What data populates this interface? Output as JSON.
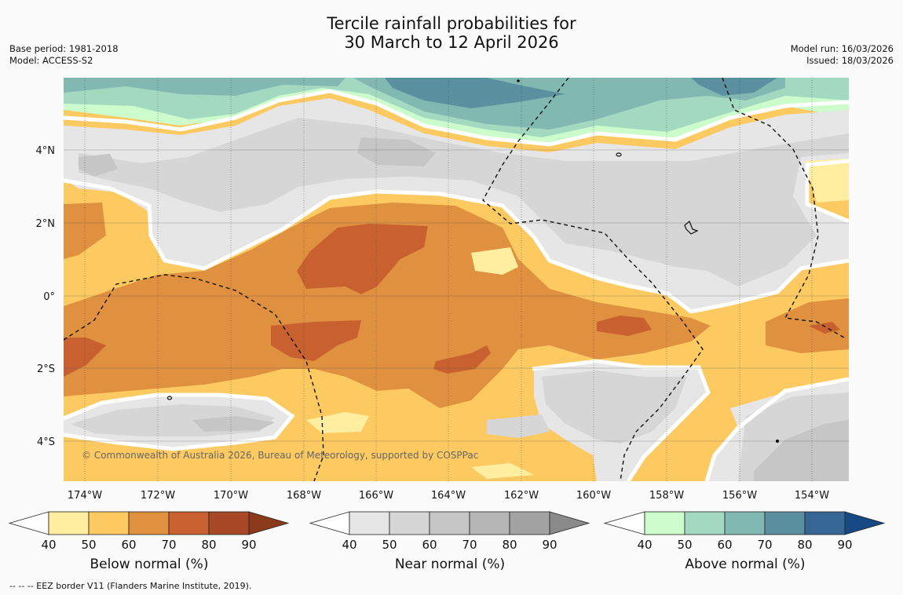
{
  "title": {
    "line1": "Tercile rainfall probabilities for",
    "line2": "30 March to 12 April 2026"
  },
  "meta": {
    "base_period": "Base period: 1981-2018",
    "model": "Model: ACCESS-S2",
    "model_run": "Model run: 16/03/2026",
    "issued": "Issued: 18/03/2026"
  },
  "map": {
    "lat_labels": [
      "4°N",
      "2°N",
      "0°",
      "2°S",
      "4°S"
    ],
    "lon_labels": [
      "174°W",
      "172°W",
      "170°W",
      "168°W",
      "166°W",
      "164°W",
      "162°W",
      "160°W",
      "158°W",
      "156°W",
      "154°W"
    ],
    "copyright": "© Commonwealth of Australia 2026, Bureau of Meteorology, supported by COSPPac"
  },
  "colorbars": [
    {
      "id": "below",
      "title": "Below normal (%)",
      "ticks": [
        "40",
        "50",
        "60",
        "70",
        "80",
        "90"
      ],
      "colors": [
        "#ffffff",
        "#ffeda0",
        "#fdca62",
        "#e09140",
        "#c8612f",
        "#a94826",
        "#8b3a1c"
      ]
    },
    {
      "id": "near",
      "title": "Near normal (%)",
      "ticks": [
        "40",
        "50",
        "60",
        "70",
        "80",
        "90"
      ],
      "colors": [
        "#ffffff",
        "#e6e6e6",
        "#d6d6d6",
        "#c6c6c6",
        "#b5b5b5",
        "#a3a3a3",
        "#8a8a8a"
      ]
    },
    {
      "id": "above",
      "title": "Above normal (%)",
      "ticks": [
        "40",
        "50",
        "60",
        "70",
        "80",
        "90"
      ],
      "colors": [
        "#ffffff",
        "#ccfccb",
        "#a3d9c1",
        "#82b8b2",
        "#5a909f",
        "#366694",
        "#174a84"
      ]
    }
  ],
  "footnote": "--  --  -- EEZ border V11 (Flanders Marine Institute, 2019)."
}
